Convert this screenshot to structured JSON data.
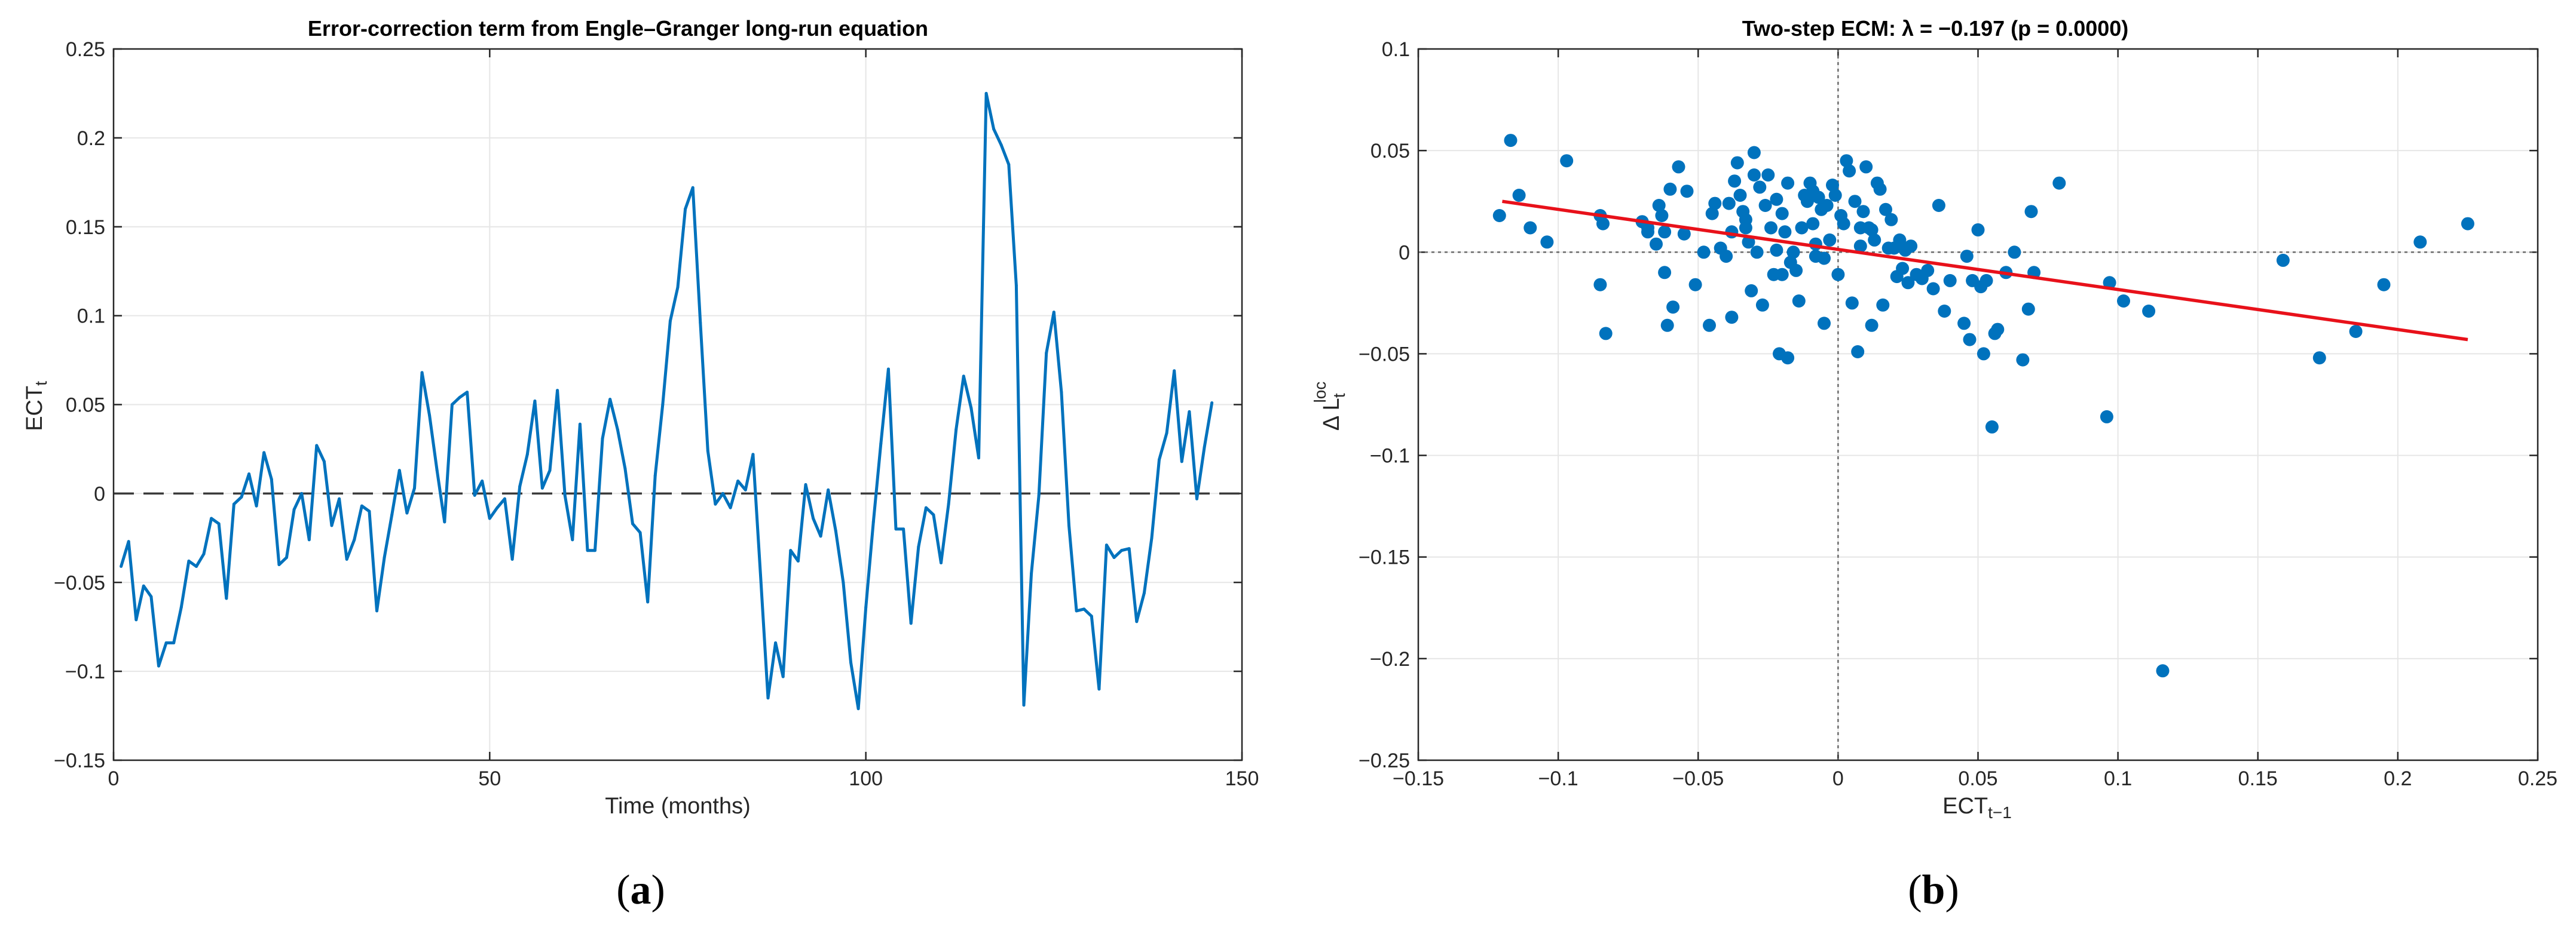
{
  "panel_labels": {
    "a_open": "(",
    "a": "a",
    "a_close": ")",
    "b_open": "(",
    "b": "b",
    "b_close": ")"
  },
  "chart_data": [
    {
      "id": "a",
      "type": "line",
      "title": "Error-correction term from Engle–Granger long-run equation",
      "xlabel": "Time (months)",
      "ylabel_main": "ECT",
      "ylabel_sub": "t",
      "xlim": [
        0,
        150
      ],
      "ylim": [
        -0.15,
        0.25
      ],
      "xticks": [
        0,
        50,
        100,
        150
      ],
      "xtick_labels": [
        "0",
        "50",
        "100",
        "150"
      ],
      "yticks": [
        -0.15,
        -0.1,
        -0.05,
        0,
        0.05,
        0.1,
        0.15,
        0.2,
        0.25
      ],
      "ytick_labels": [
        "−0.15",
        "−0.1",
        "−0.05",
        "0",
        "0.05",
        "0.1",
        "0.15",
        "0.2",
        "0.25"
      ],
      "grid": true,
      "zero_reference": 0,
      "series": [
        {
          "name": "ECT",
          "color": "#0072BD",
          "x": [
            1,
            2,
            3,
            4,
            5,
            6,
            7,
            8,
            9,
            10,
            11,
            12,
            13,
            14,
            15,
            16,
            17,
            18,
            19,
            20,
            21,
            22,
            23,
            24,
            25,
            26,
            27,
            28,
            29,
            30,
            31,
            32,
            33,
            34,
            35,
            36,
            37,
            38,
            39,
            40,
            41,
            42,
            43,
            44,
            45,
            46,
            47,
            48,
            49,
            50,
            51,
            52,
            53,
            54,
            55,
            56,
            57,
            58,
            59,
            60,
            61,
            62,
            63,
            64,
            65,
            66,
            67,
            68,
            69,
            70,
            71,
            72,
            73,
            74,
            75,
            76,
            77,
            78,
            79,
            80,
            81,
            82,
            83,
            84,
            85,
            86,
            87,
            88,
            89,
            90,
            91,
            92,
            93,
            94,
            95,
            96,
            97,
            98,
            99,
            100,
            101,
            102,
            103,
            104,
            105,
            106,
            107,
            108,
            109,
            110,
            111,
            112,
            113,
            114,
            115,
            116,
            117,
            118,
            119,
            120,
            121,
            122,
            123,
            124,
            125,
            126,
            127,
            128,
            129,
            130,
            131,
            132,
            133,
            134,
            135,
            136,
            137,
            138,
            139,
            140,
            141,
            142,
            143,
            144,
            145,
            146
          ],
          "y": [
            -0.041,
            -0.027,
            -0.071,
            -0.052,
            -0.058,
            -0.097,
            -0.084,
            -0.084,
            -0.064,
            -0.038,
            -0.041,
            -0.034,
            -0.014,
            -0.017,
            -0.059,
            -0.006,
            -0.002,
            0.011,
            -0.007,
            0.023,
            0.008,
            -0.04,
            -0.036,
            -0.009,
            0.0,
            -0.026,
            0.027,
            0.018,
            -0.018,
            -0.003,
            -0.037,
            -0.026,
            -0.007,
            -0.01,
            -0.066,
            -0.036,
            -0.012,
            0.013,
            -0.011,
            0.003,
            0.068,
            0.044,
            0.013,
            -0.016,
            0.05,
            0.054,
            0.057,
            -0.001,
            0.007,
            -0.014,
            -0.008,
            -0.003,
            -0.037,
            0.004,
            0.022,
            0.052,
            0.003,
            0.013,
            0.058,
            -0.001,
            -0.026,
            0.039,
            -0.032,
            -0.032,
            0.031,
            0.053,
            0.036,
            0.014,
            -0.017,
            -0.022,
            -0.061,
            0.01,
            0.05,
            0.097,
            0.116,
            0.16,
            0.172,
            0.096,
            0.024,
            -0.006,
            0.0,
            -0.008,
            0.007,
            0.002,
            0.022,
            -0.046,
            -0.115,
            -0.084,
            -0.103,
            -0.032,
            -0.038,
            0.005,
            -0.014,
            -0.024,
            0.002,
            -0.021,
            -0.05,
            -0.095,
            -0.121,
            -0.064,
            -0.016,
            0.028,
            0.07,
            -0.02,
            -0.02,
            -0.073,
            -0.03,
            -0.008,
            -0.012,
            -0.039,
            -0.006,
            0.036,
            0.066,
            0.048,
            0.02,
            0.225,
            0.205,
            0.196,
            0.185,
            0.117,
            -0.119,
            -0.045,
            -0.001,
            0.079,
            0.102,
            0.057,
            -0.018,
            -0.066,
            -0.065,
            -0.069,
            -0.11,
            -0.029,
            -0.036,
            -0.032,
            -0.031,
            -0.072,
            -0.056,
            -0.025,
            0.019,
            0.034,
            0.069,
            0.018,
            0.046,
            -0.003,
            0.026,
            0.051
          ]
        }
      ]
    },
    {
      "id": "b",
      "type": "scatter",
      "title": "Two-step  ECM:  λ = −0.197  (p  =  0.0000)",
      "xlabel_main": "ECT",
      "xlabel_sub": "t−1",
      "ylabel_main": "Δ  L",
      "ylabel_sub": "t",
      "ylabel_sup": "loc",
      "xlim": [
        -0.15,
        0.25
      ],
      "ylim": [
        -0.25,
        0.1
      ],
      "xticks": [
        -0.15,
        -0.1,
        -0.05,
        0,
        0.05,
        0.1,
        0.15,
        0.2,
        0.25
      ],
      "xtick_labels": [
        "−0.15",
        "−0.1",
        "−0.05",
        "0",
        "0.05",
        "0.1",
        "0.15",
        "0.2",
        "0.25"
      ],
      "yticks": [
        -0.25,
        -0.2,
        -0.15,
        -0.1,
        -0.05,
        0,
        0.05,
        0.1
      ],
      "ytick_labels": [
        "−0.25",
        "−0.2",
        "−0.15",
        "−0.1",
        "−0.05",
        "0",
        "0.05",
        "0.1"
      ],
      "grid": true,
      "zero_reference": {
        "x": 0,
        "y": 0
      },
      "series": [
        {
          "name": "observations",
          "color": "#0072BD",
          "x": [
            -0.121,
            -0.117,
            -0.114,
            -0.11,
            -0.104,
            -0.097,
            -0.085,
            -0.084,
            -0.083,
            -0.085,
            -0.07,
            -0.068,
            -0.068,
            -0.064,
            -0.062,
            -0.061,
            -0.06,
            -0.057,
            -0.063,
            -0.062,
            -0.059,
            -0.054,
            -0.051,
            -0.048,
            -0.045,
            -0.042,
            -0.04,
            -0.039,
            -0.038,
            -0.038,
            -0.037,
            -0.036,
            -0.035,
            -0.034,
            -0.033,
            -0.033,
            -0.032,
            -0.031,
            -0.03,
            -0.029,
            -0.028,
            -0.027,
            -0.026,
            -0.025,
            -0.024,
            -0.023,
            -0.022,
            -0.021,
            -0.02,
            -0.019,
            -0.018,
            -0.018,
            -0.017,
            -0.016,
            -0.015,
            -0.014,
            -0.013,
            -0.012,
            -0.011,
            -0.01,
            -0.009,
            -0.009,
            -0.008,
            -0.008,
            -0.007,
            -0.006,
            -0.005,
            -0.004,
            -0.003,
            -0.002,
            -0.001,
            0.0,
            0.001,
            0.002,
            0.003,
            0.004,
            0.005,
            0.006,
            0.007,
            0.008,
            0.009,
            0.01,
            0.011,
            0.012,
            0.013,
            0.014,
            0.015,
            0.016,
            0.017,
            0.018,
            0.019,
            0.02,
            0.021,
            0.022,
            0.023,
            0.024,
            0.025,
            0.026,
            0.03,
            0.032,
            0.034,
            0.036,
            0.038,
            0.04,
            0.045,
            0.047,
            0.048,
            0.05,
            0.051,
            0.052,
            0.053,
            0.055,
            0.056,
            0.057,
            0.06,
            0.063,
            0.066,
            0.068,
            0.069,
            0.07,
            0.079,
            0.096,
            0.097,
            0.102,
            0.111,
            0.116,
            0.159,
            0.172,
            0.185,
            0.195,
            0.208,
            0.225,
            -0.065,
            -0.055,
            -0.046,
            -0.03,
            -0.02,
            -0.005,
            0.012,
            0.028,
            0.046,
            -0.044,
            -0.022,
            0.008
          ],
          "y": [
            0.018,
            0.055,
            0.028,
            0.012,
            0.005,
            0.045,
            0.018,
            0.014,
            -0.04,
            -0.016,
            0.015,
            0.012,
            0.01,
            0.023,
            -0.01,
            -0.036,
            0.031,
            0.042,
            0.018,
            0.01,
            -0.027,
            0.03,
            -0.016,
            0.0,
            0.019,
            0.002,
            -0.002,
            0.024,
            0.01,
            -0.032,
            0.035,
            0.044,
            0.028,
            0.02,
            0.016,
            0.012,
            0.005,
            -0.019,
            0.049,
            0.0,
            0.032,
            -0.026,
            0.023,
            0.038,
            0.012,
            -0.011,
            0.026,
            -0.05,
            0.019,
            0.01,
            -0.052,
            0.034,
            -0.005,
            0.0,
            -0.009,
            -0.024,
            0.012,
            0.028,
            0.025,
            0.034,
            0.03,
            0.014,
            0.004,
            -0.002,
            0.027,
            0.021,
            -0.035,
            0.023,
            0.006,
            0.033,
            0.028,
            -0.011,
            0.018,
            0.014,
            0.045,
            0.04,
            -0.025,
            0.025,
            -0.049,
            0.012,
            0.02,
            0.042,
            0.012,
            0.011,
            0.006,
            0.034,
            0.031,
            -0.026,
            0.021,
            0.002,
            0.016,
            0.002,
            -0.012,
            0.006,
            -0.008,
            0.001,
            -0.015,
            0.003,
            -0.013,
            -0.009,
            -0.018,
            0.023,
            -0.029,
            -0.014,
            -0.035,
            -0.043,
            -0.014,
            0.011,
            -0.017,
            -0.05,
            -0.014,
            -0.086,
            -0.04,
            -0.038,
            -0.01,
            0.0,
            -0.053,
            -0.028,
            0.02,
            -0.01,
            0.034,
            -0.081,
            -0.015,
            -0.024,
            -0.029,
            -0.206,
            -0.004,
            -0.052,
            -0.039,
            -0.016,
            0.005,
            0.014,
            0.004,
            0.009,
            -0.036,
            0.038,
            -0.011,
            -0.003,
            -0.036,
            -0.011,
            -0.002,
            0.024,
            0.001,
            0.003
          ]
        },
        {
          "name": "fitted line",
          "type": "line",
          "color": "#E8111A",
          "x": [
            -0.12,
            0.225
          ],
          "y": [
            0.025,
            -0.043
          ]
        }
      ]
    }
  ]
}
